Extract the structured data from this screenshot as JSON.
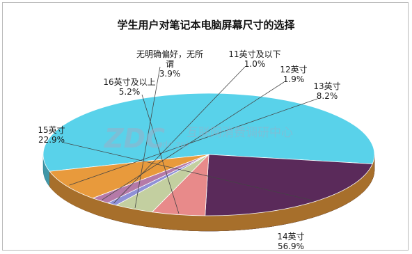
{
  "chart_data": {
    "type": "pie",
    "title": "学生用户对笔记本电脑屏幕尺寸的选择",
    "watermark": {
      "logo": "ZDC",
      "cn": "互联网消费调研中心",
      "sub": "zdc.zol"
    },
    "slices": [
      {
        "name": "14英寸",
        "value": 56.9,
        "pct_text": "56.9%",
        "color": "#59d2ea"
      },
      {
        "name": "15英寸",
        "value": 22.9,
        "pct_text": "22.9%",
        "color": "#5a2a5a"
      },
      {
        "name": "16英寸及以上",
        "value": 5.2,
        "pct_text": "5.2%",
        "color": "#e88a8a"
      },
      {
        "name": "无明确偏好，无所谓",
        "value": 3.9,
        "pct_text": "3.9%",
        "color": "#c3cfa0"
      },
      {
        "name": "11英寸及以下",
        "value": 1.0,
        "pct_text": "1.0%",
        "color": "#8f90d6"
      },
      {
        "name": "12英寸",
        "value": 1.9,
        "pct_text": "1.9%",
        "color": "#b57aa8"
      },
      {
        "name": "13英寸",
        "value": 8.2,
        "pct_text": "8.2%",
        "color": "#e89a3c"
      }
    ]
  }
}
